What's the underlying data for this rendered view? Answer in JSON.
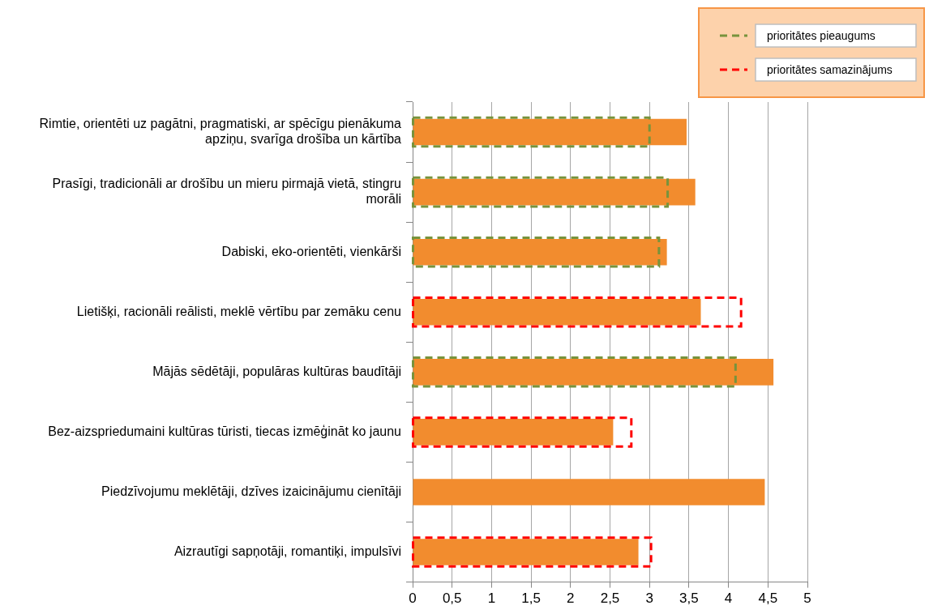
{
  "chart_data": {
    "type": "bar",
    "orientation": "horizontal",
    "categories": [
      "Rimtie, orientēti uz pagātni, pragmatiski, ar spēcīgu pienākuma apziņu, svarīga drošība un kārtība",
      "Prasīgi, tradicionāli ar drošību un mieru pirmajā vietā, stingru morāli",
      "Dabiski, eko-orientēti, vienkārši",
      "Lietišķi, racionāli reālisti, meklē vērtību par zemāku cenu",
      "Mājās sēdētāji, populāras kultūras baudītāji",
      "Bez-aizspriedumaini kultūras tūristi, tiecas izmēģināt ko jaunu",
      "Piedzīvojumu meklētāji, dzīves izaicinājumu cienītāji",
      "Aizrautīgi sapņotāji, romantiķi, impulsīvi"
    ],
    "series": [
      {
        "color": "#f28c2e",
        "values": [
          3.47,
          3.58,
          3.22,
          3.65,
          4.57,
          2.54,
          4.46,
          2.86
        ]
      },
      {
        "name": "prioritātes pieaugums",
        "color": "#77933c",
        "line_style": "dashed",
        "values": [
          3.0,
          3.23,
          3.12,
          null,
          4.09,
          null,
          null,
          null
        ]
      },
      {
        "name": "prioritātes samazinājums",
        "color": "#ff0000",
        "line_style": "dashed",
        "values": [
          null,
          null,
          null,
          4.16,
          null,
          2.77,
          null,
          3.02
        ]
      }
    ],
    "xlim": [
      0,
      5
    ],
    "xticks": [
      0,
      {
        "value": 0.5,
        "label": "0,5"
      },
      1,
      {
        "value": 1.5,
        "label": "1,5"
      },
      2,
      {
        "value": 2.5,
        "label": "2,5"
      },
      3,
      {
        "value": 3.5,
        "label": "3,5"
      },
      4,
      {
        "value": 4.5,
        "label": "4,5"
      },
      5
    ],
    "grid": "x",
    "legend": "top right"
  }
}
